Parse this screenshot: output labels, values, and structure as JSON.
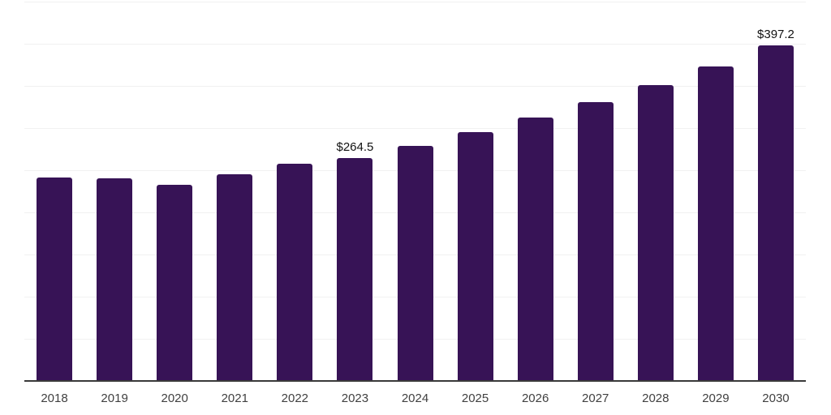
{
  "chart_data": {
    "type": "bar",
    "title": "",
    "xlabel": "",
    "ylabel": "",
    "categories": [
      "2018",
      "2019",
      "2020",
      "2021",
      "2022",
      "2023",
      "2024",
      "2025",
      "2026",
      "2027",
      "2028",
      "2029",
      "2030"
    ],
    "values": [
      241.0,
      240.0,
      232.3,
      245.0,
      257.3,
      264.5,
      278.5,
      295.2,
      312.0,
      330.5,
      350.5,
      372.5,
      397.2
    ],
    "value_labels": [
      null,
      null,
      null,
      null,
      null,
      "$264.5",
      null,
      null,
      null,
      null,
      null,
      null,
      "$397.2"
    ],
    "ylim": [
      0,
      450
    ],
    "grid_step": 50,
    "grid": true,
    "legend": false,
    "y_tick_labels_visible": false,
    "colors": {
      "bar": "#371356",
      "value_label": "#111111",
      "tick_label": "#404040",
      "gridline": "#f1f1f1",
      "axis_line": "#3a3a3a",
      "background": "#ffffff"
    }
  }
}
